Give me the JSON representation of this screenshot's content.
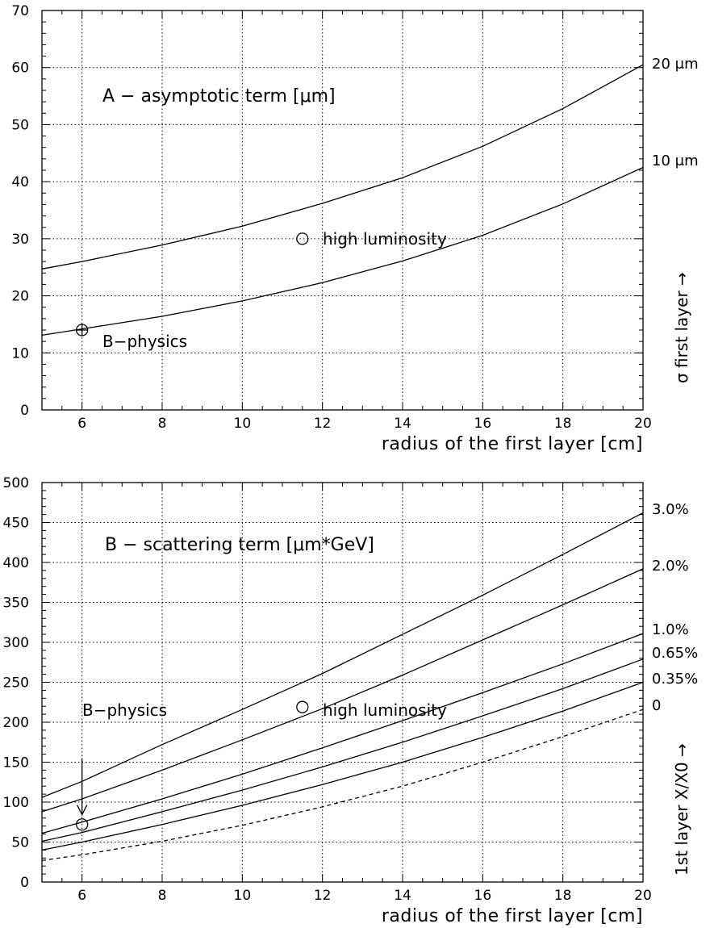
{
  "chart_data": [
    {
      "type": "line",
      "title": "A − asymptotic term [μm]",
      "xlabel": "radius of the first layer [cm]",
      "ylabel": "σ first layer →",
      "xlim": [
        5,
        20
      ],
      "ylim": [
        0,
        70
      ],
      "xticks": [
        6,
        8,
        10,
        12,
        14,
        16,
        18,
        20
      ],
      "yticks": [
        0,
        10,
        20,
        30,
        40,
        50,
        60,
        70
      ],
      "grid": true,
      "series": [
        {
          "name": "20 μm",
          "x": [
            5,
            6,
            8,
            10,
            12,
            14,
            16,
            18,
            20
          ],
          "y": [
            24.7,
            26.0,
            28.9,
            32.2,
            36.2,
            40.7,
            46.2,
            52.8,
            60.5
          ]
        },
        {
          "name": "10 μm",
          "x": [
            5,
            6,
            8,
            10,
            12,
            14,
            16,
            18,
            20
          ],
          "y": [
            13.1,
            14.2,
            16.4,
            19.1,
            22.3,
            26.1,
            30.6,
            36.1,
            42.5
          ]
        }
      ],
      "annotations": [
        {
          "text": "high luminosity",
          "x": 11.5,
          "y": 30,
          "marker": "circle"
        },
        {
          "text": "B−physics",
          "x": 6,
          "y": 14,
          "marker": "circle-cross"
        }
      ]
    },
    {
      "type": "line",
      "title": "B − scattering term [μm*GeV]",
      "xlabel": "radius of the first layer [cm]",
      "ylabel": "1st layer X/X0 →",
      "xlim": [
        5,
        20
      ],
      "ylim": [
        0,
        500
      ],
      "xticks": [
        6,
        8,
        10,
        12,
        14,
        16,
        18,
        20
      ],
      "yticks": [
        0,
        50,
        100,
        150,
        200,
        250,
        300,
        350,
        400,
        450,
        500
      ],
      "grid": true,
      "series": [
        {
          "name": "3.0%",
          "x": [
            5,
            6,
            8,
            10,
            12,
            14,
            16,
            18,
            20
          ],
          "y": [
            106,
            126,
            172,
            216,
            261,
            310,
            359,
            410,
            462
          ]
        },
        {
          "name": "2.0%",
          "x": [
            5,
            6,
            8,
            10,
            12,
            14,
            16,
            18,
            20
          ],
          "y": [
            88,
            104,
            140,
            178,
            217,
            259,
            303,
            347,
            392
          ]
        },
        {
          "name": "1.0%",
          "x": [
            5,
            6,
            8,
            10,
            12,
            14,
            16,
            18,
            20
          ],
          "y": [
            61,
            75,
            104,
            135,
            168,
            202,
            237,
            273,
            311
          ]
        },
        {
          "name": "0.65%",
          "x": [
            5,
            6,
            8,
            10,
            12,
            14,
            16,
            18,
            20
          ],
          "y": [
            51,
            62,
            88,
            115,
            144,
            175,
            208,
            242,
            279
          ]
        },
        {
          "name": "0.35%",
          "x": [
            5,
            6,
            8,
            10,
            12,
            14,
            16,
            18,
            20
          ],
          "y": [
            40,
            50,
            72,
            96,
            122,
            150,
            181,
            214,
            250
          ]
        },
        {
          "name": "0",
          "dashed": true,
          "x": [
            5,
            6,
            8,
            10,
            12,
            14,
            16,
            18,
            20
          ],
          "y": [
            27,
            34,
            51,
            71,
            94,
            120,
            150,
            182,
            216
          ]
        }
      ],
      "annotations": [
        {
          "text": "high luminosity",
          "x": 11.5,
          "y": 219,
          "marker": "circle"
        },
        {
          "text": "B−physics",
          "x": 6,
          "y": 72,
          "marker": "circle",
          "arrow": true
        }
      ]
    }
  ]
}
